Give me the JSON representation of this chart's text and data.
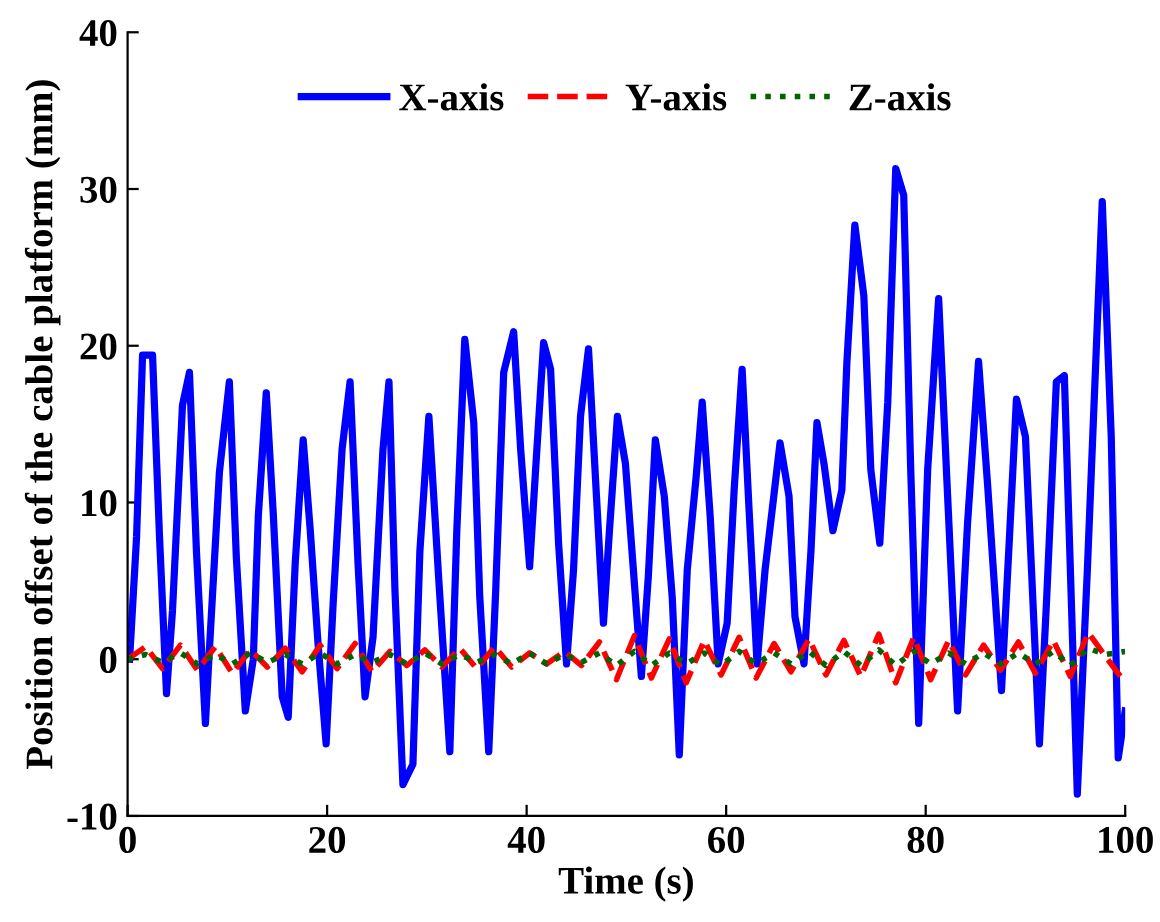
{
  "chart_data": {
    "type": "line",
    "xlabel": "Time (s)",
    "ylabel": "Position offset of the cable platform (mm)",
    "xlim": [
      0,
      100
    ],
    "ylim": [
      -10,
      40
    ],
    "xticks": [
      0,
      20,
      40,
      60,
      80,
      100
    ],
    "yticks": [
      -10,
      0,
      10,
      20,
      30,
      40
    ],
    "grid": false,
    "legend": "top",
    "marker": "none",
    "series": [
      {
        "name": "X-axis",
        "color": "#0000ff",
        "line_style": "solid",
        "x": [
          0.2,
          0.9,
          1.5,
          2.5,
          3.2,
          3.9,
          4.5,
          5.5,
          6.2,
          6.9,
          7.8,
          8.2,
          9.2,
          10.2,
          10.9,
          11.8,
          12.6,
          13.1,
          13.9,
          14.6,
          15.5,
          16.1,
          16.8,
          17.6,
          18.3,
          19.1,
          19.9,
          20.6,
          21.5,
          22.3,
          23.1,
          23.8,
          24.6,
          25.6,
          26.2,
          26.8,
          27.6,
          28.6,
          29.3,
          30.2,
          31.2,
          32.3,
          33.0,
          33.8,
          34.7,
          35.3,
          36.2,
          36.9,
          37.7,
          38.7,
          39.4,
          40.3,
          40.9,
          41.7,
          42.4,
          43.2,
          44.0,
          44.7,
          45.4,
          46.2,
          47.0,
          47.7,
          48.3,
          49.1,
          49.9,
          50.7,
          51.5,
          52.2,
          52.9,
          53.8,
          54.6,
          55.3,
          56.1,
          57.0,
          57.6,
          58.4,
          59.2,
          60.1,
          60.8,
          61.6,
          62.3,
          63.1,
          63.9,
          64.7,
          65.4,
          66.3,
          66.9,
          67.8,
          68.5,
          69.1,
          69.8,
          70.7,
          71.6,
          72.1,
          72.9,
          73.8,
          74.5,
          75.4,
          76.2,
          77.0,
          77.8,
          78.5,
          79.3,
          80.2,
          81.3,
          82.2,
          83.2,
          84.2,
          85.3,
          86.2,
          87.6,
          88.4,
          89.1,
          90.0,
          91.4,
          92.1,
          93.1,
          93.9,
          95.2,
          96.2,
          97.7,
          98.6,
          99.3,
          100
        ],
        "values": [
          0,
          7.8,
          19.4,
          19.4,
          7.8,
          -2.2,
          3.1,
          16.2,
          18.3,
          6.9,
          -4.1,
          0.6,
          11.9,
          17.7,
          6.5,
          -3.3,
          0,
          9.1,
          17.0,
          9.3,
          -2.4,
          -3.7,
          6.1,
          14.0,
          8.3,
          0.9,
          -5.4,
          3.5,
          13.4,
          17.7,
          6.1,
          -2.4,
          1.4,
          13.4,
          17.7,
          4.4,
          -8.0,
          -6.7,
          6.9,
          15.5,
          5.0,
          -5.9,
          8.2,
          20.4,
          15.1,
          4.0,
          -5.9,
          4.4,
          18.3,
          20.9,
          13.4,
          5.9,
          12.1,
          20.2,
          18.5,
          7.4,
          -0.3,
          5.7,
          15.5,
          19.8,
          10.4,
          2.3,
          8.2,
          15.5,
          12.5,
          5.7,
          -1.1,
          5.3,
          14.0,
          10.4,
          3.9,
          -6.1,
          5.7,
          11.7,
          16.4,
          9.1,
          -0.3,
          2.3,
          10.8,
          18.5,
          9.5,
          -0.3,
          5.7,
          10.0,
          13.8,
          10.4,
          2.7,
          -0.3,
          6.9,
          15.1,
          12.5,
          8.2,
          10.8,
          18.9,
          27.7,
          23.2,
          12.1,
          7.4,
          16.4,
          31.3,
          29.6,
          12.1,
          -4.1,
          12.1,
          23.0,
          10.4,
          -3.3,
          8.7,
          19.0,
          11.2,
          -2.0,
          7.8,
          16.6,
          14.2,
          -5.4,
          3.5,
          17.7,
          18.1,
          -8.6,
          5.6,
          29.2,
          14.2,
          -6.3,
          -3.3
        ]
      },
      {
        "name": "Y-axis",
        "color": "#ff0000",
        "line_style": "dashed",
        "x": [
          0,
          1.8,
          3.5,
          5.3,
          7,
          8.8,
          10.5,
          12.3,
          14,
          15.8,
          17.5,
          19.3,
          21,
          22.8,
          24.5,
          26.3,
          28,
          29.8,
          31.5,
          33.3,
          35,
          36.8,
          38.5,
          40.3,
          42,
          43.8,
          45.5,
          47.3,
          49,
          50.8,
          52.5,
          54.3,
          56,
          57.8,
          59.5,
          61.3,
          63,
          64.8,
          66.5,
          68.3,
          70,
          71.8,
          73.5,
          75.3,
          77,
          78.8,
          80.5,
          82.3,
          84,
          85.8,
          87.5,
          89.3,
          91,
          92.8,
          94.5,
          96.3,
          98,
          100
        ],
        "values": [
          0,
          0.8,
          -0.6,
          0.9,
          -0.7,
          0.8,
          -0.9,
          0.6,
          -0.5,
          0.7,
          -0.8,
          0.9,
          -0.6,
          1.0,
          -0.8,
          0.5,
          -0.4,
          0.6,
          -0.5,
          0.7,
          -0.6,
          0.8,
          -0.5,
          0.4,
          -0.3,
          0.5,
          -0.4,
          1.1,
          -1.3,
          1.5,
          -1.2,
          1.3,
          -1.5,
          1.2,
          -1.0,
          1.4,
          -1.2,
          1.0,
          -0.8,
          1.3,
          -1.0,
          1.2,
          -1.1,
          1.6,
          -1.5,
          1.4,
          -1.3,
          1.2,
          -1.0,
          0.9,
          -0.7,
          1.1,
          -0.9,
          1.2,
          -1.1,
          1.7,
          0.2,
          -1.5
        ]
      },
      {
        "name": "Z-axis",
        "color": "#006400",
        "line_style": "dotted",
        "x": [
          0,
          1.8,
          3.5,
          5.3,
          7,
          8.8,
          10.5,
          12.3,
          14,
          15.8,
          17.5,
          19.3,
          21,
          22.8,
          24.5,
          26.3,
          28,
          29.8,
          31.5,
          33.3,
          35,
          36.8,
          38.5,
          40.3,
          42,
          43.8,
          45.5,
          47.3,
          49,
          50.8,
          52.5,
          54.3,
          56,
          57.8,
          59.5,
          61.3,
          63,
          64.8,
          66.5,
          68.3,
          70,
          71.8,
          73.5,
          75.3,
          77,
          78.8,
          80.5,
          82.3,
          84,
          85.8,
          87.5,
          89.3,
          91,
          92.8,
          94.5,
          96.3,
          98,
          100
        ],
        "values": [
          0,
          0.3,
          -0.2,
          0.4,
          -0.3,
          0.3,
          -0.3,
          0.4,
          -0.2,
          0.3,
          -0.3,
          0.4,
          -0.3,
          0.3,
          -0.2,
          0.3,
          -0.3,
          0.4,
          -0.3,
          0.3,
          -0.2,
          0.3,
          -0.3,
          0.4,
          -0.3,
          0.3,
          -0.2,
          0.4,
          -0.4,
          0.5,
          -0.4,
          0.4,
          -0.3,
          0.4,
          -0.4,
          0.5,
          -0.3,
          0.4,
          -0.3,
          0.5,
          -0.4,
          0.5,
          -0.4,
          0.6,
          -0.4,
          0.5,
          -0.3,
          0.4,
          -0.3,
          0.4,
          -0.3,
          0.4,
          -0.3,
          0.5,
          -0.4,
          0.7,
          0.3,
          0.5
        ]
      }
    ]
  }
}
